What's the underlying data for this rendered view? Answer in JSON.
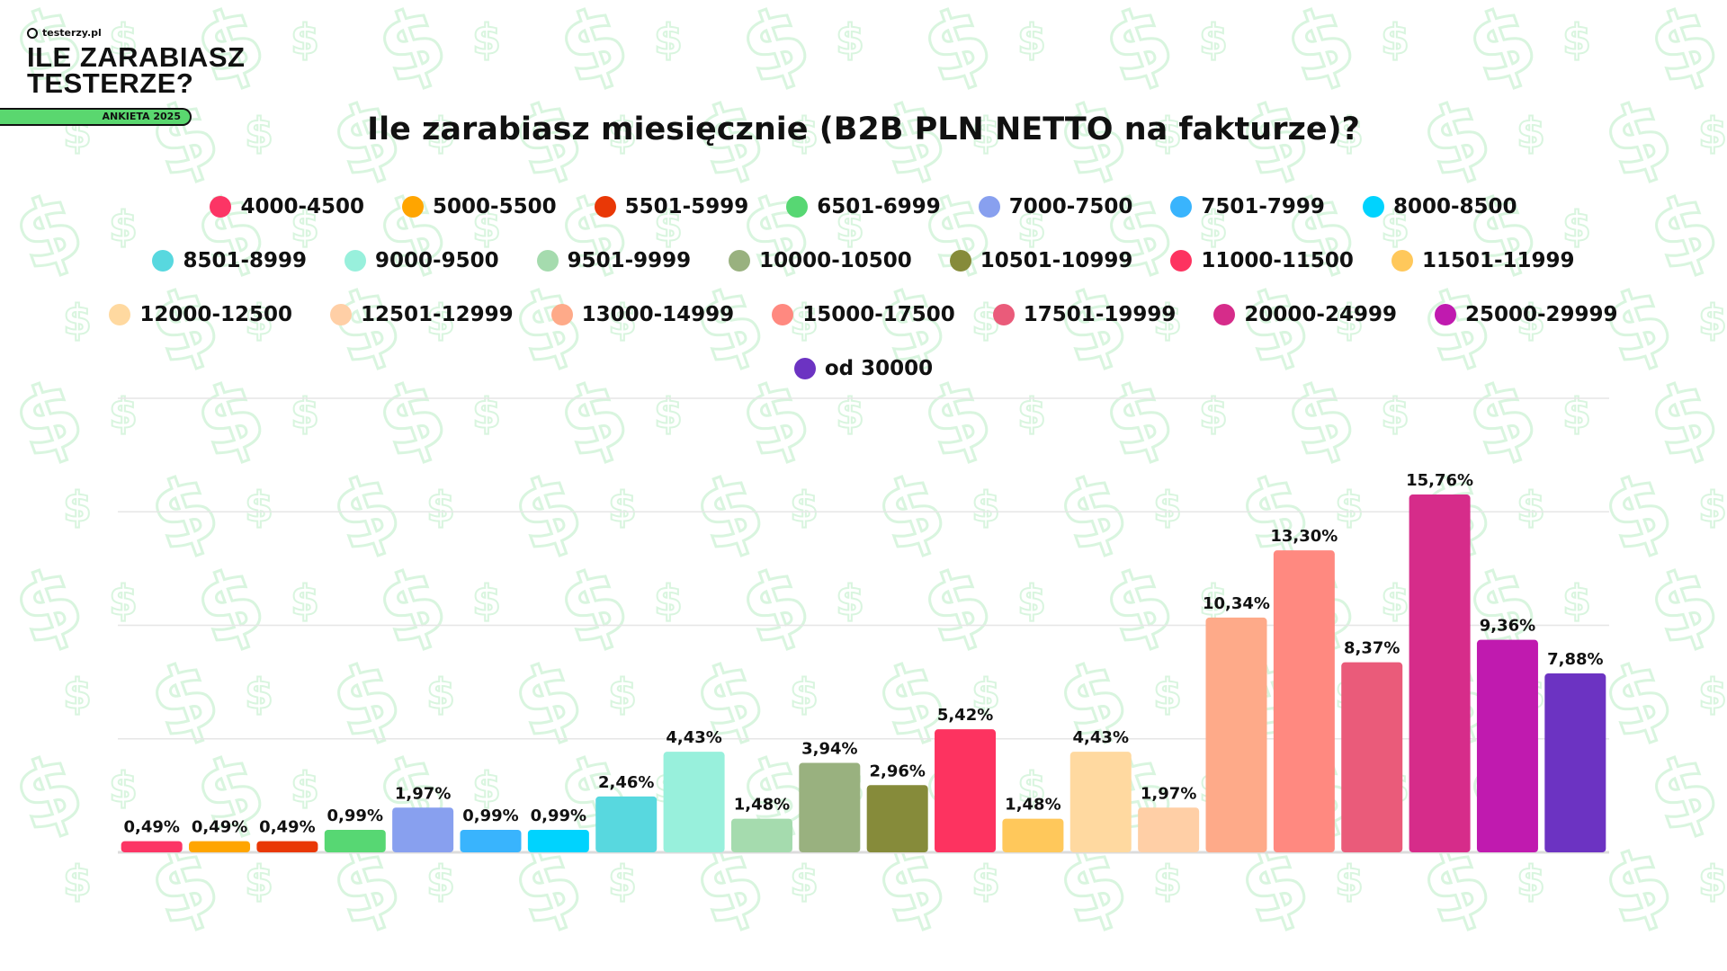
{
  "brand": {
    "site": "testerzy.pl",
    "title_line1": "ILE ZARABIASZ",
    "title_line2": "TESTERZE?",
    "badge": "ANKIETA 2025"
  },
  "chart_data": {
    "type": "bar",
    "title": "Ile zarabiasz miesięcznie (B2B PLN NETTO na fakturze)?",
    "xlabel": "",
    "ylabel": "",
    "ylim": [
      0,
      20
    ],
    "grid": true,
    "legend_position": "top",
    "categories": [
      "4000-4500",
      "5000-5500",
      "5501-5999",
      "6501-6999",
      "7000-7500",
      "7501-7999",
      "8000-8500",
      "8501-8999",
      "9000-9500",
      "9501-9999",
      "10000-10500",
      "10501-10999",
      "11000-11500",
      "11501-11999",
      "12000-12500",
      "12501-12999",
      "13000-14999",
      "15000-17500",
      "17501-19999",
      "20000-24999",
      "25000-29999",
      "od 30000"
    ],
    "values": [
      0.49,
      0.49,
      0.49,
      0.99,
      1.97,
      0.99,
      0.99,
      2.46,
      4.43,
      1.48,
      3.94,
      2.96,
      5.42,
      1.48,
      4.43,
      1.97,
      10.34,
      13.3,
      8.37,
      15.76,
      9.36,
      7.88
    ],
    "labels": [
      "0,49%",
      "0,49%",
      "0,49%",
      "0,99%",
      "1,97%",
      "0,99%",
      "0,99%",
      "2,46%",
      "4,43%",
      "1,48%",
      "3,94%",
      "2,96%",
      "5,42%",
      "1,48%",
      "4,43%",
      "1,97%",
      "10,34%",
      "13,30%",
      "8,37%",
      "15,76%",
      "9,36%",
      "7,88%"
    ],
    "colors": [
      "#fc3565",
      "#ffa500",
      "#e93806",
      "#57d773",
      "#88a0ef",
      "#39b4fd",
      "#00d3fe",
      "#58d8df",
      "#98f0dc",
      "#a5dbae",
      "#99b17f",
      "#868b3a",
      "#fd3360",
      "#ffc85b",
      "#ffd9a0",
      "#ffcfa6",
      "#feaa89",
      "#ff8980",
      "#ea5b7a",
      "#d62c8a",
      "#c01aaf",
      "#6c33c2"
    ]
  }
}
